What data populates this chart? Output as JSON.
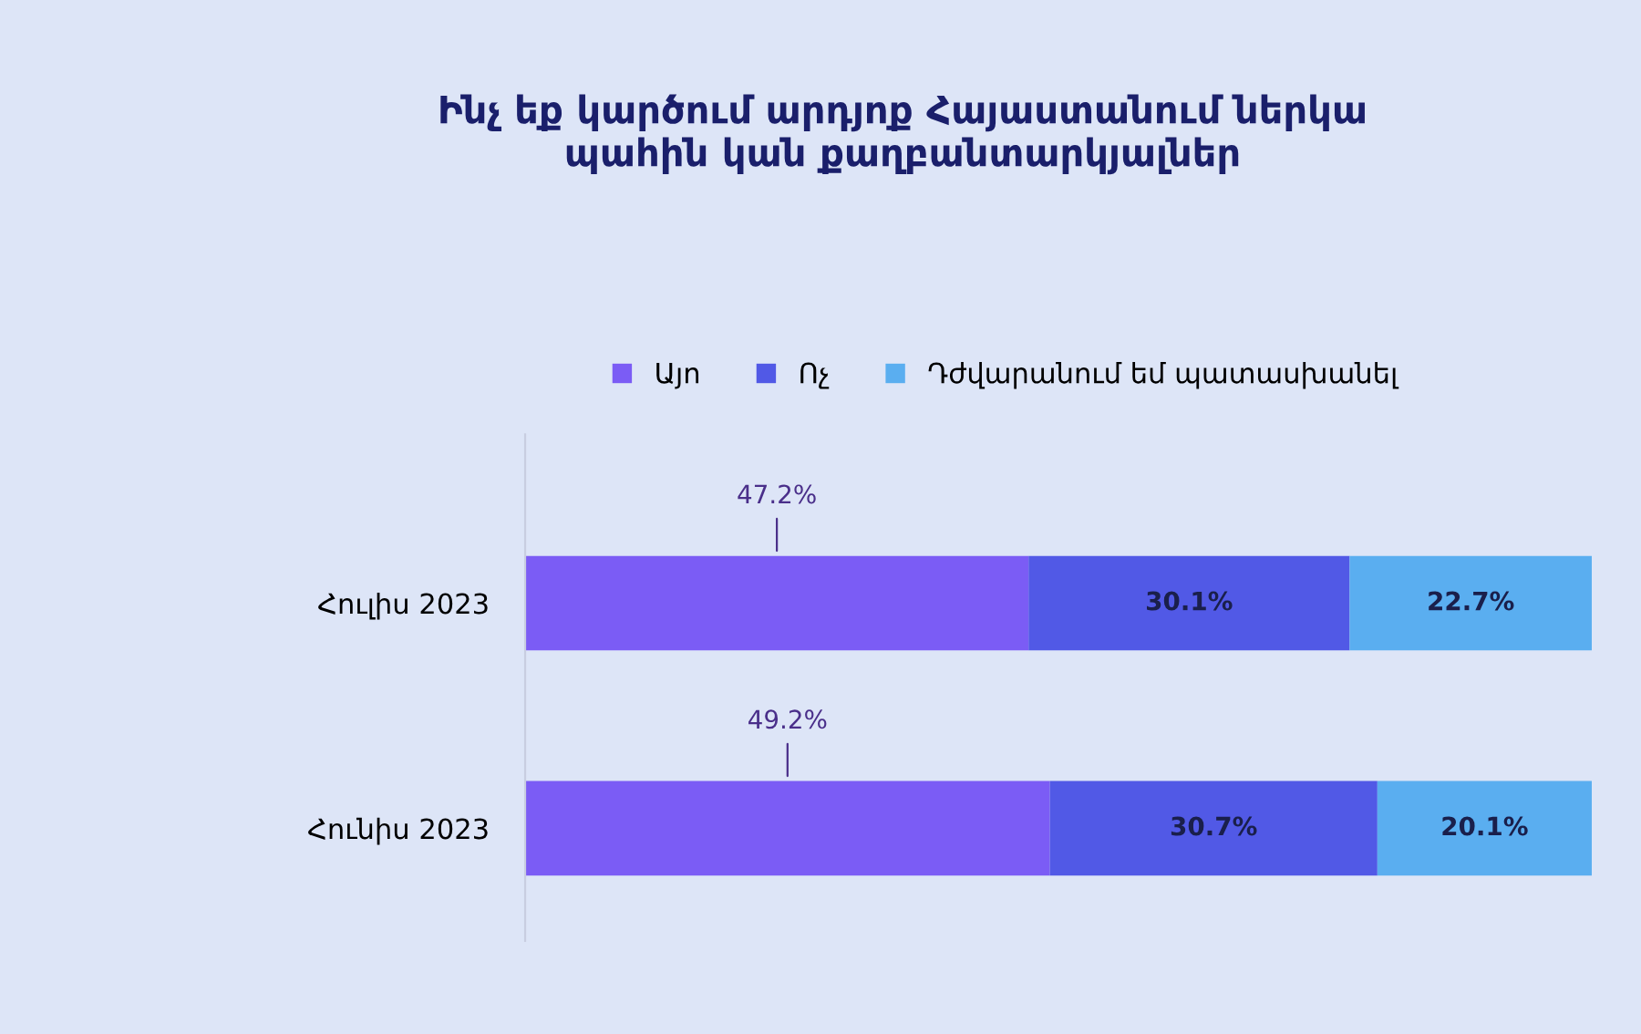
{
  "chart_data": {
    "type": "bar",
    "orientation": "horizontal",
    "stacked": true,
    "legend": "top",
    "grid": false,
    "title": "Ինչ եք կարծում արդյոք Հայաստանում ներկա\nպահին կան քաղբանտարկյալներ",
    "categories": [
      "Հուլիս 2023",
      "Հունիս 2023"
    ],
    "series": [
      {
        "name": "Այո",
        "color": "#7b5cf5",
        "values": [
          47.2,
          49.2
        ],
        "value_labels": [
          "47.2%",
          "49.2%"
        ]
      },
      {
        "name": "Ոչ",
        "color": "#5159e6",
        "values": [
          30.1,
          30.7
        ],
        "value_labels": [
          "30.1%",
          "30.7%"
        ]
      },
      {
        "name": "Դժվարանում եմ պատասխանել",
        "color": "#5aaef0",
        "values": [
          22.7,
          20.1
        ],
        "value_labels": [
          "22.7%",
          "20.1%"
        ]
      }
    ]
  }
}
